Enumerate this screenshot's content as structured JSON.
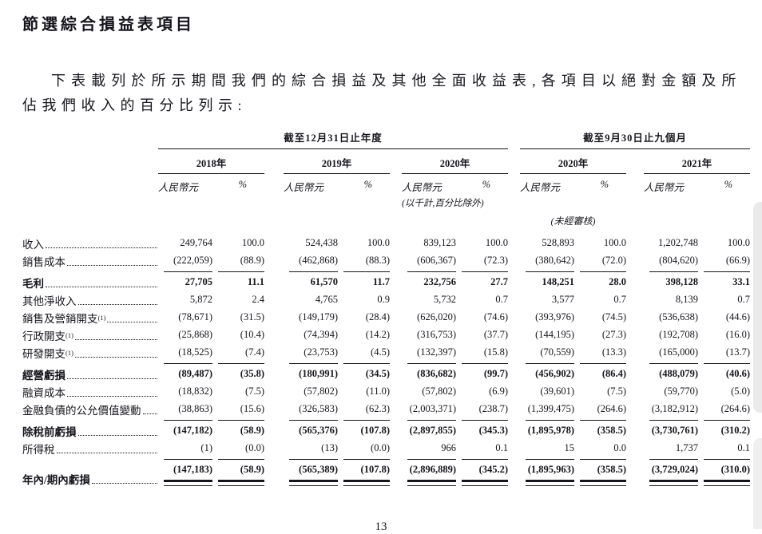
{
  "colors": {
    "text": "#15151c",
    "background": "#ffffff",
    "scrollbar": "#eaeaea"
  },
  "page": {
    "title": "節選綜合損益表項目",
    "intro": "下表載列於所示期間我們的綜合損益及其他全面收益表,各項目以絕對金額及所佔我們收入的百分比列示:",
    "page_number": "13"
  },
  "table": {
    "group_annual": "截至12月31日止年度",
    "group_nine_months": "截至9月30日止九個月",
    "years": [
      "2018年",
      "2019年",
      "2020年",
      "2020年",
      "2021年"
    ],
    "unit_currency": "人民幣元",
    "unit_pct": "%",
    "thousands_note": "(以千計,百分比除外)",
    "unaudited_note": "(未經審核)",
    "rows": [
      {
        "label": "收入",
        "bold": false,
        "topline": false,
        "double_underline": false,
        "footnote": "",
        "values": [
          "249,764",
          "100.0",
          "524,438",
          "100.0",
          "839,123",
          "100.0",
          "528,893",
          "100.0",
          "1,202,748",
          "100.0"
        ]
      },
      {
        "label": "銷售成本",
        "bold": false,
        "topline": false,
        "double_underline": false,
        "footnote": "",
        "values": [
          "(222,059)",
          "(88.9)",
          "(462,868)",
          "(88.3)",
          "(606,367)",
          "(72.3)",
          "(380,642)",
          "(72.0)",
          "(804,620)",
          "(66.9)"
        ]
      },
      {
        "label": "毛利",
        "bold": true,
        "topline": true,
        "double_underline": false,
        "footnote": "",
        "values": [
          "27,705",
          "11.1",
          "61,570",
          "11.7",
          "232,756",
          "27.7",
          "148,251",
          "28.0",
          "398,128",
          "33.1"
        ]
      },
      {
        "label": "其他淨收入",
        "bold": false,
        "topline": false,
        "double_underline": false,
        "footnote": "",
        "values": [
          "5,872",
          "2.4",
          "4,765",
          "0.9",
          "5,732",
          "0.7",
          "3,577",
          "0.7",
          "8,139",
          "0.7"
        ]
      },
      {
        "label": "銷售及營銷開支",
        "bold": false,
        "topline": false,
        "double_underline": false,
        "footnote": "(1)",
        "values": [
          "(78,671)",
          "(31.5)",
          "(149,179)",
          "(28.4)",
          "(626,020)",
          "(74.6)",
          "(393,976)",
          "(74.5)",
          "(536,638)",
          "(44.6)"
        ]
      },
      {
        "label": "行政開支",
        "bold": false,
        "topline": false,
        "double_underline": false,
        "footnote": "(1)",
        "values": [
          "(25,868)",
          "(10.4)",
          "(74,394)",
          "(14.2)",
          "(316,753)",
          "(37.7)",
          "(144,195)",
          "(27.3)",
          "(192,708)",
          "(16.0)"
        ]
      },
      {
        "label": "研發開支",
        "bold": false,
        "topline": false,
        "double_underline": false,
        "footnote": "(1)",
        "values": [
          "(18,525)",
          "(7.4)",
          "(23,753)",
          "(4.5)",
          "(132,397)",
          "(15.8)",
          "(70,559)",
          "(13.3)",
          "(165,000)",
          "(13.7)"
        ]
      },
      {
        "label": "經營虧損",
        "bold": true,
        "topline": true,
        "double_underline": false,
        "footnote": "",
        "values": [
          "(89,487)",
          "(35.8)",
          "(180,991)",
          "(34.5)",
          "(836,682)",
          "(99.7)",
          "(456,902)",
          "(86.4)",
          "(488,079)",
          "(40.6)"
        ]
      },
      {
        "label": "融資成本",
        "bold": false,
        "topline": false,
        "double_underline": false,
        "footnote": "",
        "values": [
          "(18,832)",
          "(7.5)",
          "(57,802)",
          "(11.0)",
          "(57,802)",
          "(6.9)",
          "(39,601)",
          "(7.5)",
          "(59,770)",
          "(5.0)"
        ]
      },
      {
        "label": "金融負債的公允價值變動",
        "bold": false,
        "topline": false,
        "double_underline": false,
        "footnote": "",
        "values": [
          "(38,863)",
          "(15.6)",
          "(326,583)",
          "(62.3)",
          "(2,003,371)",
          "(238.7)",
          "(1,399,475)",
          "(264.6)",
          "(3,182,912)",
          "(264.6)"
        ]
      },
      {
        "label": "除稅前虧損",
        "bold": true,
        "topline": true,
        "double_underline": false,
        "footnote": "",
        "values": [
          "(147,182)",
          "(58.9)",
          "(565,376)",
          "(107.8)",
          "(2,897,855)",
          "(345.3)",
          "(1,895,978)",
          "(358.5)",
          "(3,730,761)",
          "(310.2)"
        ]
      },
      {
        "label": "所得稅",
        "bold": false,
        "topline": false,
        "double_underline": false,
        "footnote": "",
        "values": [
          "(1)",
          "(0.0)",
          "(13)",
          "(0.0)",
          "966",
          "0.1",
          "15",
          "0.0",
          "1,737",
          "0.1"
        ]
      },
      {
        "label": "年內/期內虧損",
        "bold": true,
        "topline": true,
        "double_underline": true,
        "footnote": "",
        "values": [
          "(147,183)",
          "(58.9)",
          "(565,389)",
          "(107.8)",
          "(2,896,889)",
          "(345.2)",
          "(1,895,963)",
          "(358.5)",
          "(3,729,024)",
          "(310.0)"
        ]
      }
    ]
  }
}
